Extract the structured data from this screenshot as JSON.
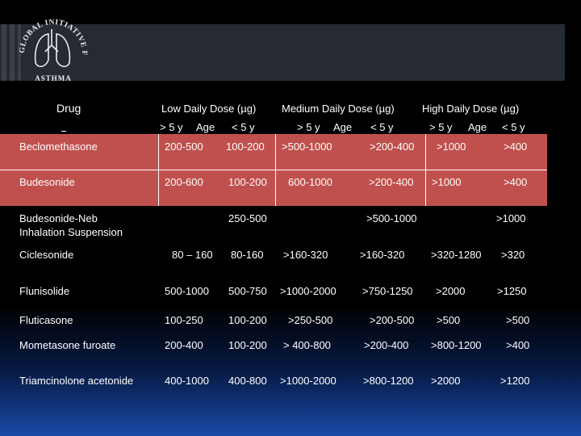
{
  "logo": {
    "arc_text": "GLOBAL INITIATIVE FOR",
    "bottom_text": "ASTHMA"
  },
  "headers": {
    "drug": "Drug",
    "low": "Low  Daily Dose (µg)",
    "medium": "Medium Daily Dose (µg)",
    "high": "High Daily Dose (µg)"
  },
  "subheaders": {
    "low_gt": "> 5 y",
    "low_age": "Age",
    "low_lt": "< 5 y",
    "med_gt": "> 5 y",
    "med_age": "Age",
    "med_lt": "< 5 y",
    "high_gt": "> 5 y",
    "high_age": "Age",
    "high_lt": "< 5 y"
  },
  "rows": [
    {
      "drug": "Beclomethasone",
      "low_gt5": "200-500",
      "low_lt5": "100-200",
      "med_gt5": ">500-1000",
      "med_lt5": ">200-400",
      "high_gt5": ">1000",
      "high_lt5": ">400"
    },
    {
      "drug": "Budesonide",
      "low_gt5": "200-600",
      "low_lt5": "100-200",
      "med_gt5": "600-1000",
      "med_lt5": ">200-400",
      "high_gt5": ">1000",
      "high_lt5": ">400"
    },
    {
      "drug_line1": "Budesonide-Neb",
      "drug_line2": "Inhalation Suspension",
      "low": "250-500",
      "med": ">500-1000",
      "high": ">1000"
    },
    {
      "drug": "Ciclesonide",
      "low_gt5": "80 – 160",
      "low_lt5": "80-160",
      "med_gt5": ">160-320",
      "med_lt5": ">160-320",
      "high_gt5": ">320-1280",
      "high_lt5": ">320"
    },
    {
      "drug": "Flunisolide",
      "low_gt5": "500-1000",
      "low_lt5": "500-750",
      "med_gt5": ">1000-2000",
      "med_lt5": ">750-1250",
      "high_gt5": ">2000",
      "high_lt5": ">1250"
    },
    {
      "drug": "Fluticasone",
      "low_gt5": "100-250",
      "low_lt5": "100-200",
      "med_gt5": ">250-500",
      "med_lt5": ">200-500",
      "high_gt5": ">500",
      "high_lt5": ">500"
    },
    {
      "drug": "Mometasone furoate",
      "low_gt5": "200-400",
      "low_lt5": "100-200",
      "med_gt5": "> 400-800",
      "med_lt5": ">200-400",
      "high_gt5": ">800-1200",
      "high_lt5": ">400"
    },
    {
      "drug": "Triamcinolone acetonide",
      "low_gt5": "400-1000",
      "low_lt5": "400-800",
      "med_gt5": ">1000-2000",
      "med_lt5": ">800-1200",
      "high_gt5": ">2000",
      "high_lt5": ">1200"
    }
  ]
}
